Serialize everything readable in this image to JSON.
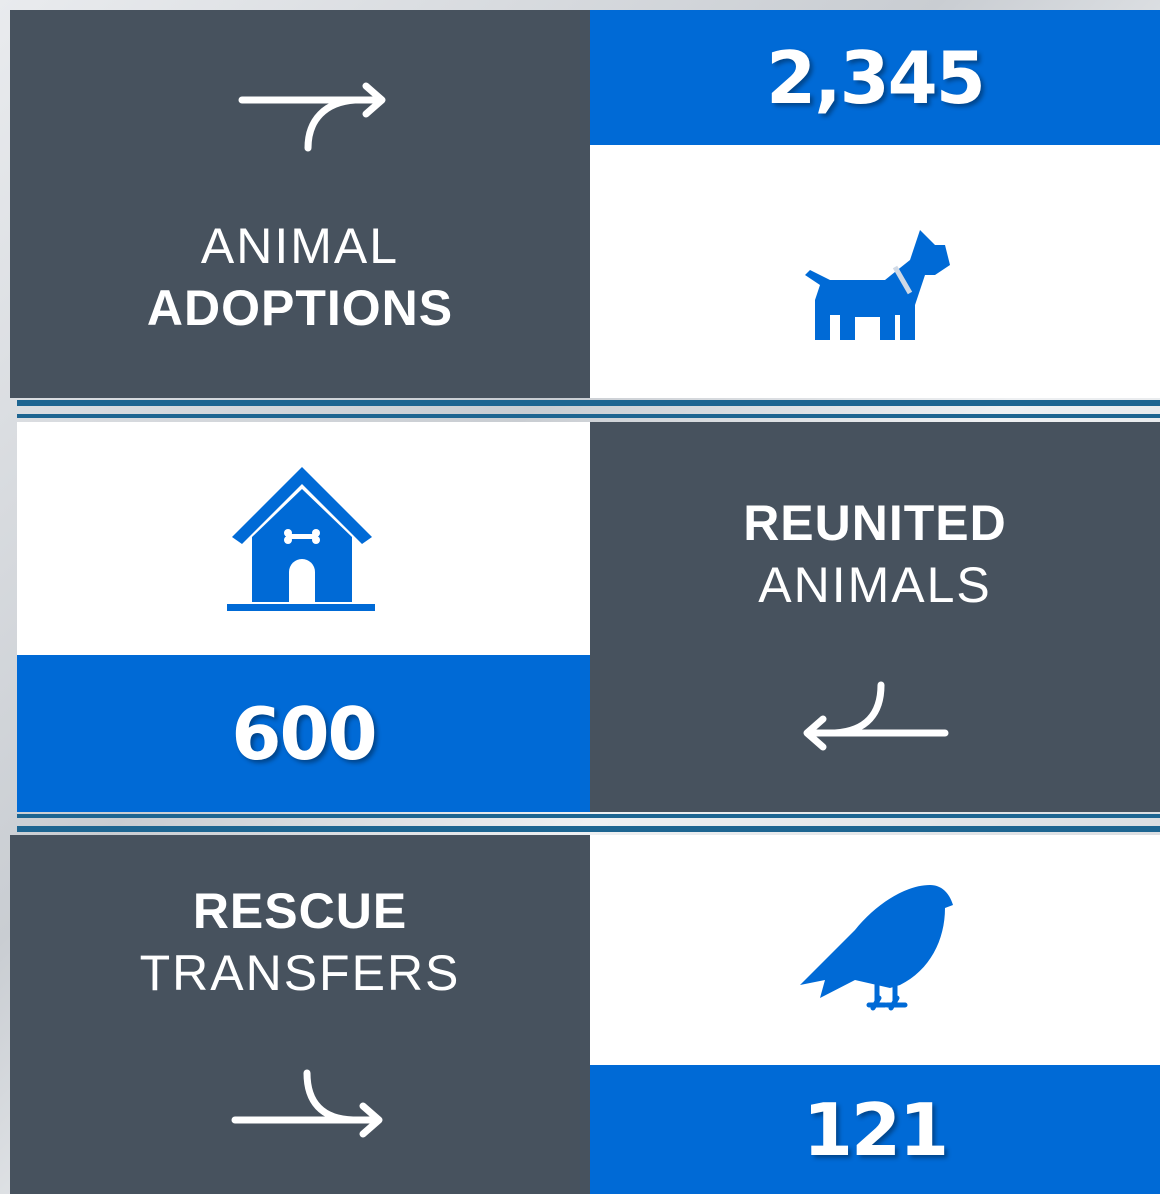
{
  "stats": [
    {
      "number": "2,345",
      "label_top": "ANIMAL",
      "label_bottom": "ADOPTIONS"
    },
    {
      "number": "600",
      "label_top": "REUNITED",
      "label_bottom": "ANIMALS"
    },
    {
      "number": "121",
      "label_top": "RESCUE",
      "label_bottom": "TRANSFERS"
    }
  ]
}
